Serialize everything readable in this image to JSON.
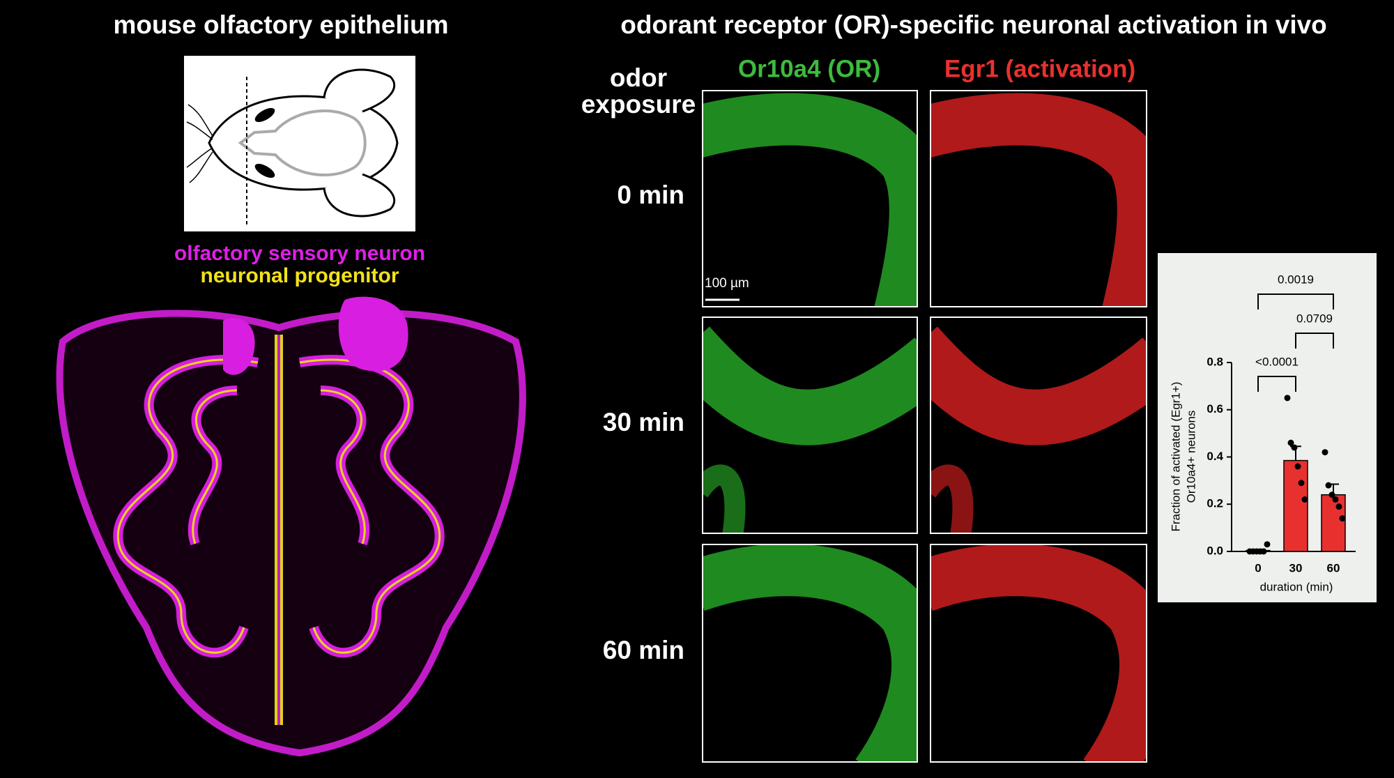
{
  "left_panel": {
    "title": "mouse olfactory epithelium",
    "labels": [
      "olfactory sensory neuron",
      "neuronal progenitor"
    ]
  },
  "right_panel": {
    "title": "odorant receptor (OR)-specific neuronal activation in vivo",
    "row_header": [
      "odor",
      "exposure"
    ],
    "columns": [
      "Or10a4 (OR)",
      "Egr1 (activation)"
    ],
    "rows": [
      "0 min",
      "30 min",
      "60 min"
    ],
    "scale_bar": "100 µm"
  },
  "chart_data": {
    "type": "bar",
    "categories": [
      "0",
      "30",
      "60"
    ],
    "values": [
      0.004,
      0.385,
      0.24
    ],
    "errors": [
      0.004,
      0.06,
      0.045
    ],
    "points": [
      [
        0,
        0,
        0,
        0,
        0,
        0.03
      ],
      [
        0.65,
        0.46,
        0.44,
        0.36,
        0.29,
        0.22
      ],
      [
        0.42,
        0.28,
        0.24,
        0.22,
        0.19,
        0.14
      ]
    ],
    "color": "#e8312f",
    "ylim": [
      0,
      0.8
    ],
    "yticks": [
      {
        "value": 0,
        "label": "0.0"
      },
      0.2,
      0.4,
      0.6,
      0.8
    ],
    "ylabel": [
      "Fraction of activated (Egr1+)",
      "Or10a4+ neurons"
    ],
    "xlabel": "duration (min)",
    "comparisons": [
      {
        "label": "<0.0001",
        "between": [
          "0",
          "30"
        ]
      },
      {
        "label": "0.0709",
        "between": [
          "30",
          "60"
        ]
      },
      {
        "label": "0.0019",
        "between": [
          "0",
          "60"
        ]
      }
    ]
  }
}
